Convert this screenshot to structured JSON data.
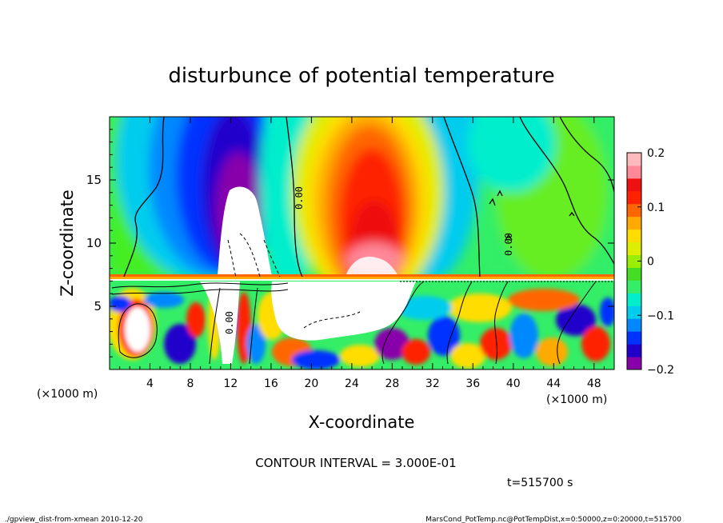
{
  "chart_data": {
    "type": "heatmap",
    "title": "disturbunce of potential temperature",
    "xlabel": "X-coordinate",
    "ylabel": "Z-coordinate",
    "x_unit": "(×1000 m)",
    "x_unit_right": "(×1000 m)",
    "x_ticks": [
      4,
      8,
      12,
      16,
      20,
      24,
      28,
      32,
      36,
      40,
      44,
      48
    ],
    "y_ticks": [
      5,
      10,
      15
    ],
    "xlim": [
      0,
      50
    ],
    "ylim": [
      0,
      20
    ],
    "colorbar": {
      "ticks": [
        0.2,
        0.1,
        0,
        -0.1,
        -0.2
      ],
      "tick_labels": [
        "0.2",
        "0.1",
        "0",
        "−0.1",
        "−0.2"
      ],
      "range": [
        -0.2,
        0.2
      ],
      "colors": [
        "#8800aa",
        "#2200cc",
        "#0033ff",
        "#0088ff",
        "#00ccee",
        "#00eecc",
        "#33ee66",
        "#44dd22",
        "#99ee00",
        "#ddee00",
        "#ffdd00",
        "#ffaa00",
        "#ff6600",
        "#ff2200",
        "#ee1111",
        "#ff8899",
        "#ffbbbb"
      ]
    },
    "contour_labels": [
      "0.00",
      "0.00",
      "0.00"
    ],
    "contour_interval_text": "CONTOUR INTERVAL = 3.000E-01",
    "time_text": "t=515700 s",
    "grid": false
  },
  "footer": {
    "left": "./gpview_dist-from-xmean  2010-12-20",
    "right": "MarsCond_PotTemp.nc@PotTempDist,x=0:50000,z=0:20000,t=515700"
  }
}
